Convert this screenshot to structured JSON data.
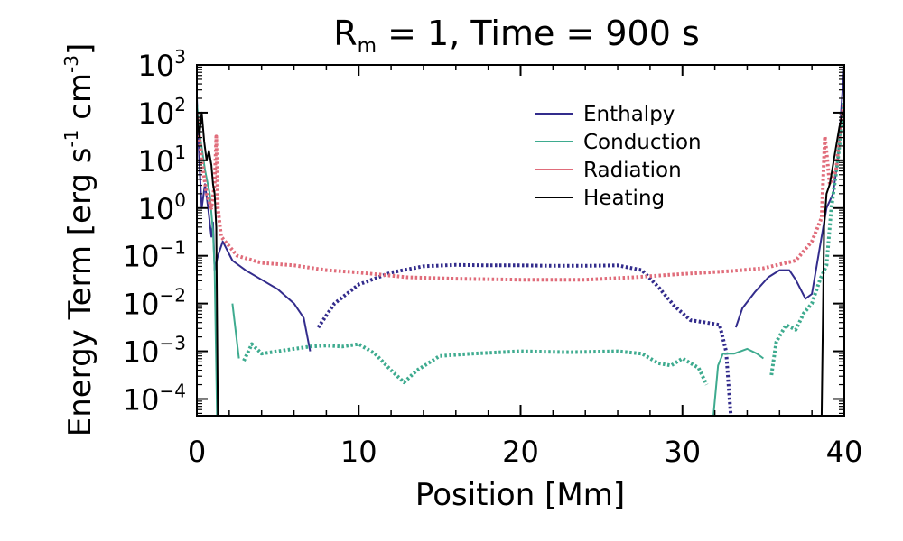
{
  "chart_data": {
    "type": "line",
    "title_main": "R",
    "title_sub": "m",
    "title_rest": " = 1, Time = 900 s",
    "xlabel": "Position [Mm]",
    "ylabel_main": "Energy Term [erg s",
    "ylabel_exp1": "-1",
    "ylabel_mid": " cm",
    "ylabel_exp2": "-3",
    "ylabel_end": "]",
    "xlim": [
      0,
      40
    ],
    "ylim_log10": [
      -4.35,
      3
    ],
    "x_ticks": [
      {
        "value": 0,
        "label": "0"
      },
      {
        "value": 10,
        "label": "10"
      },
      {
        "value": 20,
        "label": "20"
      },
      {
        "value": 30,
        "label": "30"
      },
      {
        "value": 40,
        "label": "40"
      }
    ],
    "y_ticks": [
      {
        "exp": 3,
        "base": "10",
        "sup": "3"
      },
      {
        "exp": 2,
        "base": "10",
        "sup": "2"
      },
      {
        "exp": 1,
        "base": "10",
        "sup": "1"
      },
      {
        "exp": 0,
        "base": "10",
        "sup": "0"
      },
      {
        "exp": -1,
        "base": "10",
        "sup": "−1"
      },
      {
        "exp": -2,
        "base": "10",
        "sup": "−2"
      },
      {
        "exp": -3,
        "base": "10",
        "sup": "−3"
      },
      {
        "exp": -4,
        "base": "10",
        "sup": "−4"
      }
    ],
    "legend_position": "top-right",
    "note": "Solid segments = positive values, dotted segments = negative values (log of magnitude)",
    "series": [
      {
        "name": "Enthalpy",
        "color": "#332c8c",
        "segments": [
          {
            "style": "solid",
            "points": [
              [
                0.0,
                2.3
              ],
              [
                0.15,
                1.0
              ],
              [
                0.3,
                0.0
              ],
              [
                0.5,
                0.5
              ],
              [
                0.7,
                0.0
              ],
              [
                0.9,
                -0.6
              ],
              [
                1.0,
                -0.3
              ],
              [
                1.1,
                -1.3
              ],
              [
                1.3,
                -1.0
              ],
              [
                1.6,
                -0.7
              ],
              [
                2.2,
                -1.1
              ],
              [
                3.0,
                -1.3
              ],
              [
                4.0,
                -1.5
              ],
              [
                5.0,
                -1.7
              ],
              [
                6.0,
                -2.0
              ],
              [
                6.6,
                -2.3
              ],
              [
                7.0,
                -3.0
              ]
            ]
          },
          {
            "style": "dotted",
            "points": [
              [
                7.5,
                -2.5
              ],
              [
                8.5,
                -2.0
              ],
              [
                10.0,
                -1.6
              ],
              [
                12.0,
                -1.35
              ],
              [
                14.0,
                -1.22
              ],
              [
                16.0,
                -1.19
              ],
              [
                18.0,
                -1.2
              ],
              [
                20.0,
                -1.2
              ],
              [
                22.0,
                -1.21
              ],
              [
                24.0,
                -1.21
              ],
              [
                26.0,
                -1.2
              ],
              [
                27.5,
                -1.3
              ],
              [
                28.5,
                -1.65
              ],
              [
                29.5,
                -2.05
              ],
              [
                30.5,
                -2.35
              ],
              [
                31.5,
                -2.4
              ],
              [
                32.3,
                -2.45
              ],
              [
                32.7,
                -3.0
              ],
              [
                33.0,
                -4.4
              ]
            ]
          },
          {
            "style": "solid",
            "points": [
              [
                33.3,
                -2.5
              ],
              [
                33.7,
                -2.1
              ],
              [
                34.5,
                -1.75
              ],
              [
                35.3,
                -1.45
              ],
              [
                36.0,
                -1.3
              ],
              [
                36.6,
                -1.3
              ],
              [
                37.0,
                -1.5
              ],
              [
                37.6,
                -1.9
              ],
              [
                38.0,
                -1.8
              ],
              [
                38.5,
                -0.8
              ],
              [
                38.9,
                0.0
              ],
              [
                39.3,
                0.3
              ],
              [
                39.6,
                1.0
              ],
              [
                39.8,
                2.0
              ],
              [
                40.0,
                3.0
              ]
            ]
          }
        ]
      },
      {
        "name": "Conduction",
        "color": "#3eab8f",
        "segments": [
          {
            "style": "solid",
            "points": [
              [
                0.0,
                2.2
              ],
              [
                0.2,
                1.5
              ],
              [
                0.5,
                0.8
              ],
              [
                0.8,
                0.3
              ],
              [
                1.0,
                -0.5
              ],
              [
                1.1,
                -1.3
              ],
              [
                1.25,
                -4.4
              ]
            ]
          },
          {
            "style": "solid",
            "points": [
              [
                2.2,
                -2.0
              ],
              [
                2.6,
                -3.15
              ]
            ]
          },
          {
            "style": "dotted",
            "points": [
              [
                2.9,
                -3.2
              ],
              [
                3.4,
                -2.85
              ],
              [
                4.0,
                -3.05
              ],
              [
                5.0,
                -3.0
              ],
              [
                6.0,
                -2.95
              ],
              [
                7.0,
                -2.9
              ],
              [
                8.0,
                -2.88
              ],
              [
                9.0,
                -2.9
              ],
              [
                10.0,
                -2.85
              ],
              [
                11.0,
                -3.05
              ],
              [
                12.0,
                -3.4
              ],
              [
                12.8,
                -3.65
              ],
              [
                13.6,
                -3.4
              ],
              [
                15.0,
                -3.1
              ],
              [
                17.0,
                -3.05
              ],
              [
                20.0,
                -3.0
              ],
              [
                23.0,
                -3.02
              ],
              [
                26.0,
                -3.0
              ],
              [
                27.5,
                -3.05
              ],
              [
                28.5,
                -3.25
              ],
              [
                29.3,
                -3.3
              ],
              [
                30.0,
                -3.15
              ],
              [
                31.0,
                -3.35
              ],
              [
                31.5,
                -3.7
              ]
            ]
          },
          {
            "style": "solid",
            "points": [
              [
                31.9,
                -4.4
              ],
              [
                32.2,
                -3.3
              ],
              [
                32.5,
                -3.05
              ],
              [
                33.2,
                -3.05
              ],
              [
                34.0,
                -2.95
              ],
              [
                34.6,
                -3.05
              ],
              [
                35.0,
                -3.15
              ]
            ]
          },
          {
            "style": "dotted",
            "points": [
              [
                35.5,
                -3.5
              ],
              [
                35.8,
                -2.8
              ],
              [
                36.4,
                -2.45
              ],
              [
                37.0,
                -2.55
              ],
              [
                37.5,
                -2.2
              ],
              [
                38.0,
                -2.0
              ],
              [
                38.5,
                -1.5
              ],
              [
                38.9,
                -1.2
              ],
              [
                39.2,
                0.0
              ],
              [
                39.6,
                1.0
              ],
              [
                40.0,
                2.2
              ]
            ]
          }
        ]
      },
      {
        "name": "Radiation",
        "color": "#e06c7a",
        "segments": [
          {
            "style": "dotted",
            "points": [
              [
                0.0,
                2.0
              ],
              [
                0.3,
                1.0
              ],
              [
                0.6,
                0.3
              ],
              [
                0.9,
                0.0
              ],
              [
                1.1,
                0.5
              ],
              [
                1.2,
                1.5
              ],
              [
                1.3,
                0.0
              ],
              [
                1.5,
                -0.6
              ],
              [
                2.5,
                -1.0
              ],
              [
                4.0,
                -1.15
              ],
              [
                6.0,
                -1.2
              ],
              [
                8.0,
                -1.3
              ],
              [
                10.0,
                -1.35
              ],
              [
                13.0,
                -1.45
              ],
              [
                16.0,
                -1.48
              ],
              [
                20.0,
                -1.5
              ],
              [
                24.0,
                -1.5
              ],
              [
                27.0,
                -1.45
              ],
              [
                30.0,
                -1.38
              ],
              [
                33.0,
                -1.32
              ],
              [
                35.0,
                -1.26
              ],
              [
                37.0,
                -1.1
              ],
              [
                38.0,
                -0.7
              ],
              [
                38.6,
                -0.2
              ],
              [
                38.8,
                1.5
              ],
              [
                39.1,
                0.5
              ],
              [
                39.5,
                0.8
              ],
              [
                39.8,
                1.8
              ],
              [
                40.0,
                2.2
              ]
            ]
          }
        ]
      },
      {
        "name": "Heating",
        "color": "#000000",
        "segments": [
          {
            "style": "solid",
            "points": [
              [
                0.0,
                2.0
              ],
              [
                0.15,
                1.5
              ],
              [
                0.3,
                2.0
              ],
              [
                0.45,
                1.4
              ],
              [
                0.6,
                1.0
              ],
              [
                0.75,
                1.2
              ],
              [
                0.9,
                0.9
              ],
              [
                1.0,
                0.5
              ],
              [
                1.1,
                0.3
              ],
              [
                1.2,
                -0.4
              ],
              [
                1.3,
                -4.4
              ]
            ]
          },
          {
            "style": "solid",
            "points": [
              [
                38.6,
                -4.4
              ],
              [
                38.75,
                -0.4
              ],
              [
                38.9,
                0.3
              ],
              [
                39.1,
                0.5
              ],
              [
                39.3,
                0.9
              ],
              [
                39.5,
                1.3
              ],
              [
                39.7,
                1.7
              ],
              [
                39.9,
                2.0
              ],
              [
                40.0,
                2.0
              ]
            ]
          }
        ]
      }
    ]
  }
}
